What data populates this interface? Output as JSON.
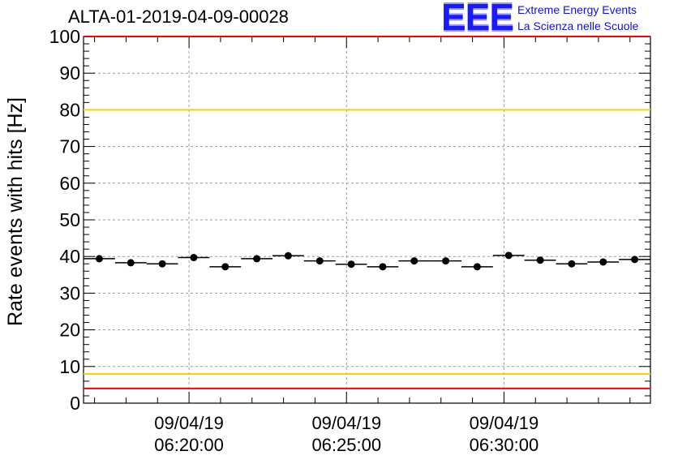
{
  "title": "ALTA-01-2019-04-09-00028",
  "logo": {
    "mark": "EEE",
    "line1": "Extreme Energy Events",
    "line2": "La Scienza nelle Scuole"
  },
  "colors": {
    "marker": "#000000",
    "grid": "#9a9a9a",
    "red_threshold": "#ff0000",
    "yellow_threshold": "#ffcc00",
    "logo_blue": "#1a1aff"
  },
  "chart_data": {
    "type": "scatter",
    "title": "ALTA-01-2019-04-09-00028",
    "ylabel": "Rate events with hits [Hz]",
    "xlabel": "",
    "ylim": [
      0,
      100
    ],
    "yticks": [
      0,
      10,
      20,
      30,
      40,
      50,
      60,
      70,
      80,
      90,
      100
    ],
    "xlim": [
      "09/04/19 06:16:39",
      "09/04/19 06:34:39"
    ],
    "xticks": [
      {
        "date": "09/04/19",
        "time": "06:20:00"
      },
      {
        "date": "09/04/19",
        "time": "06:25:00"
      },
      {
        "date": "09/04/19",
        "time": "06:30:00"
      }
    ],
    "grid": true,
    "bin_width_seconds": 60,
    "x": [
      "06:17:09",
      "06:18:09",
      "06:19:09",
      "06:20:09",
      "06:21:09",
      "06:22:09",
      "06:23:09",
      "06:24:09",
      "06:25:09",
      "06:26:09",
      "06:27:09",
      "06:28:09",
      "06:29:09",
      "06:30:09",
      "06:31:09",
      "06:32:09",
      "06:33:09",
      "06:34:09"
    ],
    "values": [
      39.4,
      38.3,
      38.0,
      39.7,
      37.2,
      39.4,
      40.2,
      38.8,
      37.9,
      37.2,
      38.8,
      38.8,
      37.2,
      40.3,
      39.0,
      38.0,
      38.5,
      39.2
    ],
    "reference_lines": [
      {
        "y": 80,
        "color": "#ffcc00"
      },
      {
        "y": 8,
        "color": "#ffcc00"
      },
      {
        "y": 100,
        "color": "#ff0000"
      },
      {
        "y": 4,
        "color": "#ff0000"
      }
    ]
  }
}
